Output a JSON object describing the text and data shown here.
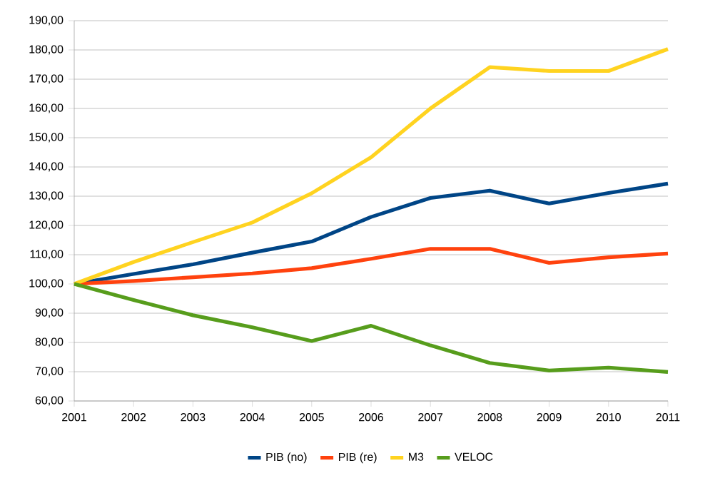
{
  "chart_data": {
    "type": "line",
    "x": [
      2001,
      2002,
      2003,
      2004,
      2005,
      2006,
      2007,
      2008,
      2009,
      2010,
      2011
    ],
    "series": [
      {
        "name": "PIB (no)",
        "color": "#004586",
        "values": [
          100,
          103.4,
          106.7,
          110.7,
          114.5,
          122.9,
          129.4,
          131.9,
          127.5,
          131.1,
          134.3
        ]
      },
      {
        "name": "PIB (re)",
        "color": "#ff420e",
        "values": [
          100,
          101,
          102.3,
          103.6,
          105.4,
          108.6,
          112,
          112,
          107.2,
          109.1,
          110.4
        ]
      },
      {
        "name": "M3",
        "color": "#ffd320",
        "values": [
          100,
          107.5,
          114.3,
          121,
          131,
          143.3,
          160,
          174.1,
          172.8,
          172.8,
          180.3
        ]
      },
      {
        "name": "VELOC",
        "color": "#579d1c",
        "values": [
          100,
          94.5,
          89.3,
          85.2,
          80.5,
          85.7,
          79,
          73,
          70.4,
          71.4,
          69.9
        ]
      }
    ],
    "xlim": [
      2001,
      2011
    ],
    "xticks": [
      2001,
      2002,
      2003,
      2004,
      2005,
      2006,
      2007,
      2008,
      2009,
      2010,
      2011
    ],
    "ylim": [
      60,
      190
    ],
    "yticks": [
      {
        "value": 60,
        "label": "60,00"
      },
      {
        "value": 70,
        "label": "70,00"
      },
      {
        "value": 80,
        "label": "80,00"
      },
      {
        "value": 90,
        "label": "90,00"
      },
      {
        "value": 100,
        "label": "100,00"
      },
      {
        "value": 110,
        "label": "110,00"
      },
      {
        "value": 120,
        "label": "120,00"
      },
      {
        "value": 130,
        "label": "130,00"
      },
      {
        "value": 140,
        "label": "140,00"
      },
      {
        "value": 150,
        "label": "150,00"
      },
      {
        "value": 160,
        "label": "160,00"
      },
      {
        "value": 170,
        "label": "170,00"
      },
      {
        "value": 180,
        "label": "180,00"
      },
      {
        "value": 190,
        "label": "190,00"
      }
    ],
    "grid": "y",
    "legend": "bottom",
    "marker": "none",
    "line_style": "solid"
  }
}
